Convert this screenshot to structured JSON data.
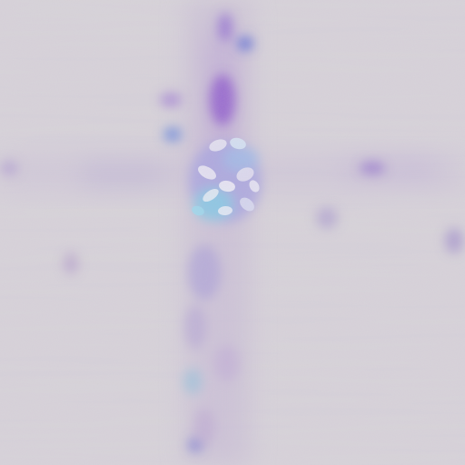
{
  "image": {
    "background_color": "#d8d4d8",
    "accent_colors": {
      "violet": "#8a5cd0",
      "blue": "#5a7ad8",
      "cyan": "#78c8e8",
      "pale_white": "#eceaf2",
      "mauve": "#b896c8"
    }
  }
}
